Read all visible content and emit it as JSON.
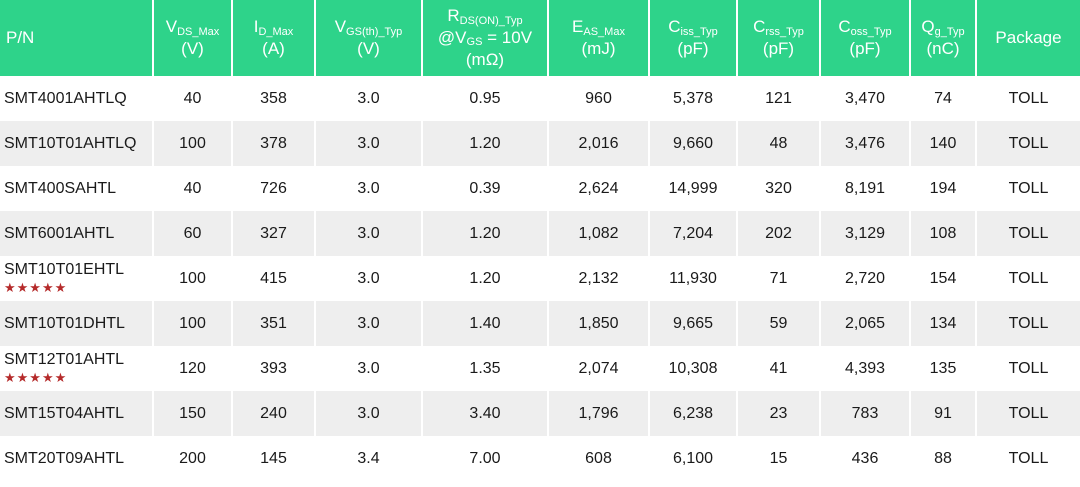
{
  "header": {
    "pn": "P/N",
    "vds": {
      "main": "V",
      "sub": "DS_Max",
      "unit": "(V)"
    },
    "id": {
      "main": "I",
      "sub": "D_Max",
      "unit": "(A)"
    },
    "vgs": {
      "main": "V",
      "sub": "GS(th)_Typ",
      "unit": "(V)"
    },
    "rds": {
      "main": "R",
      "sub": "DS(ON)_Typ",
      "line2a": "@V",
      "line2sub": "GS",
      "line2b": " = 10V",
      "unit": "(mΩ)"
    },
    "eas": {
      "main": "E",
      "sub": "AS_Max",
      "unit": "(mJ)"
    },
    "ciss": {
      "main": "C",
      "sub": "iss_Typ",
      "unit": "(pF)"
    },
    "crss": {
      "main": "C",
      "sub": "rss_Typ",
      "unit": "(pF)"
    },
    "coss": {
      "main": "C",
      "sub": "oss_Typ",
      "unit": "(pF)"
    },
    "qg": {
      "main": "Q",
      "sub": "g_Typ",
      "unit": "(nC)"
    },
    "package": "Package"
  },
  "rows": [
    {
      "pn": "SMT4001AHTLQ",
      "stars": "",
      "vds": "40",
      "id": "358",
      "vgs": "3.0",
      "rds": "0.95",
      "eas": "960",
      "ciss": "5,378",
      "crss": "121",
      "coss": "3,470",
      "qg": "74",
      "pkg": "TOLL"
    },
    {
      "pn": "SMT10T01AHTLQ",
      "stars": "",
      "vds": "100",
      "id": "378",
      "vgs": "3.0",
      "rds": "1.20",
      "eas": "2,016",
      "ciss": "9,660",
      "crss": "48",
      "coss": "3,476",
      "qg": "140",
      "pkg": "TOLL"
    },
    {
      "pn": "SMT400SAHTL",
      "stars": "",
      "vds": "40",
      "id": "726",
      "vgs": "3.0",
      "rds": "0.39",
      "eas": "2,624",
      "ciss": "14,999",
      "crss": "320",
      "coss": "8,191",
      "qg": "194",
      "pkg": "TOLL"
    },
    {
      "pn": "SMT6001AHTL",
      "stars": "",
      "vds": "60",
      "id": "327",
      "vgs": "3.0",
      "rds": "1.20",
      "eas": "1,082",
      "ciss": "7,204",
      "crss": "202",
      "coss": "3,129",
      "qg": "108",
      "pkg": "TOLL"
    },
    {
      "pn": "SMT10T01EHTL",
      "stars": "★★★★★",
      "vds": "100",
      "id": "415",
      "vgs": "3.0",
      "rds": "1.20",
      "eas": "2,132",
      "ciss": "11,930",
      "crss": "71",
      "coss": "2,720",
      "qg": "154",
      "pkg": "TOLL"
    },
    {
      "pn": "SMT10T01DHTL",
      "stars": "",
      "vds": "100",
      "id": "351",
      "vgs": "3.0",
      "rds": "1.40",
      "eas": "1,850",
      "ciss": "9,665",
      "crss": "59",
      "coss": "2,065",
      "qg": "134",
      "pkg": "TOLL"
    },
    {
      "pn": "SMT12T01AHTL",
      "stars": "★★★★★",
      "vds": "120",
      "id": "393",
      "vgs": "3.0",
      "rds": "1.35",
      "eas": "2,074",
      "ciss": "10,308",
      "crss": "41",
      "coss": "4,393",
      "qg": "135",
      "pkg": "TOLL"
    },
    {
      "pn": "SMT15T04AHTL",
      "stars": "",
      "vds": "150",
      "id": "240",
      "vgs": "3.0",
      "rds": "3.40",
      "eas": "1,796",
      "ciss": "6,238",
      "crss": "23",
      "coss": "783",
      "qg": "91",
      "pkg": "TOLL"
    },
    {
      "pn": "SMT20T09AHTL",
      "stars": "",
      "vds": "200",
      "id": "145",
      "vgs": "3.4",
      "rds": "7.00",
      "eas": "608",
      "ciss": "6,100",
      "crss": "15",
      "coss": "436",
      "qg": "88",
      "pkg": "TOLL"
    }
  ]
}
